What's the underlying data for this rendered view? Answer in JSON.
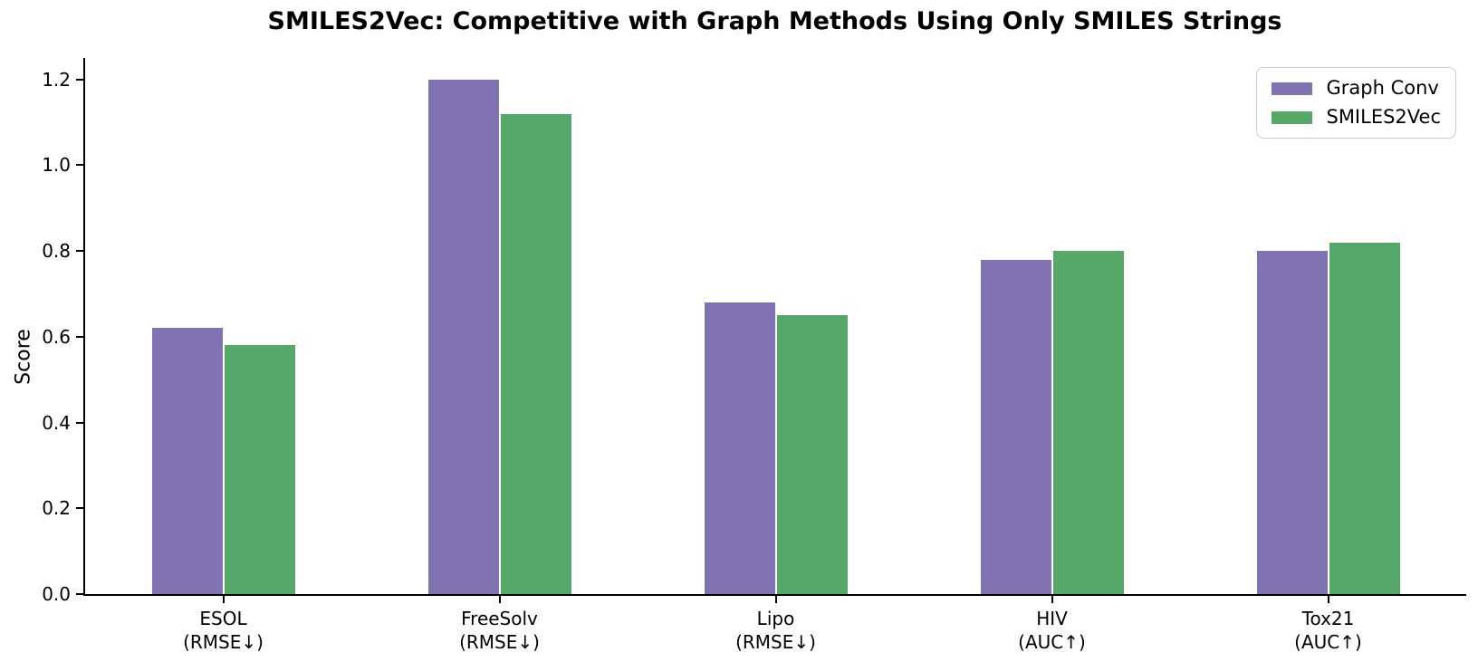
{
  "chart_data": {
    "type": "bar",
    "title": "SMILES2Vec: Competitive with Graph Methods Using Only SMILES Strings",
    "ylabel": "Score",
    "xlabel": "",
    "ylim": [
      0,
      1.25
    ],
    "yticks": [
      0.0,
      0.2,
      0.4,
      0.6,
      0.8,
      1.0,
      1.2
    ],
    "grid": false,
    "categories": [
      {
        "label": "ESOL",
        "metric": "(RMSE↓)"
      },
      {
        "label": "FreeSolv",
        "metric": "(RMSE↓)"
      },
      {
        "label": "Lipo",
        "metric": "(RMSE↓)"
      },
      {
        "label": "HIV",
        "metric": "(AUC↑)"
      },
      {
        "label": "Tox21",
        "metric": "(AUC↑)"
      }
    ],
    "series": [
      {
        "name": "Graph Conv",
        "color": "#8172b2",
        "values": [
          0.62,
          1.2,
          0.68,
          0.78,
          0.8
        ]
      },
      {
        "name": "SMILES2Vec",
        "color": "#55a868",
        "values": [
          0.58,
          1.12,
          0.65,
          0.8,
          0.82
        ]
      }
    ],
    "legend": {
      "position": "upper right"
    }
  },
  "colors": {
    "axis": "#000000",
    "background": "#ffffff",
    "legend_border": "#cccccc",
    "graph_conv": "#8172b2",
    "smiles2vec": "#55a868"
  }
}
